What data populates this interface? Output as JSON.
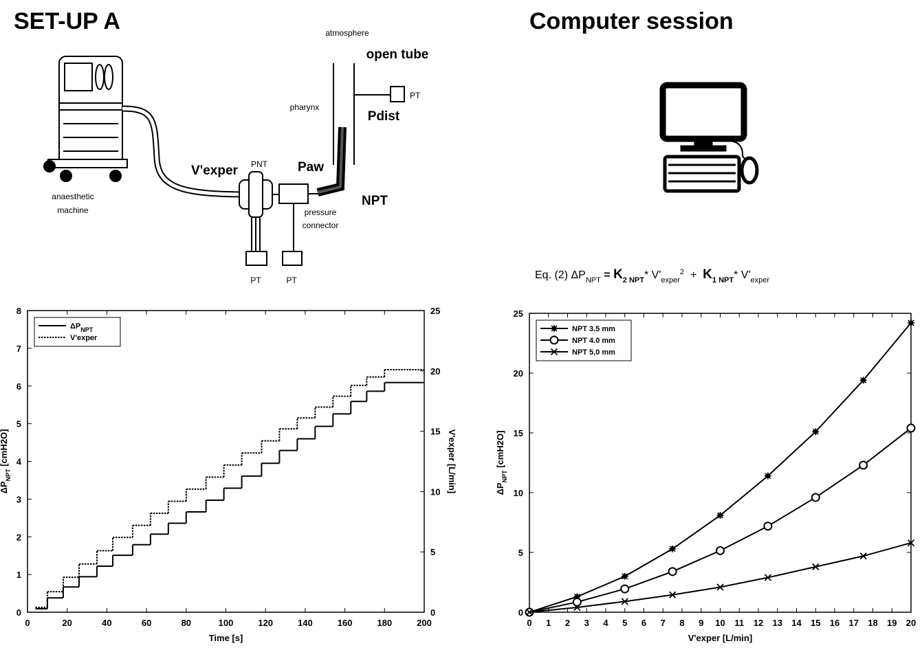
{
  "panels": {
    "setup_title": "SET-UP A",
    "computer_title": "Computer session"
  },
  "setup_labels": [
    "atmosphere",
    "open tube",
    "PT",
    "pharynx",
    "Pdist",
    "PNT",
    "V'exper",
    "Paw",
    "NPT",
    "anaesthetic",
    "machine",
    "pressure",
    "connector",
    "PT",
    "PT"
  ],
  "equation": [
    "Eq. (2) ΔP",
    "NPT",
    " = ",
    "K",
    "2 NPT",
    "* V'",
    "exper",
    "2",
    "  +  ",
    "K",
    "1 NPT",
    "* V'",
    "exper"
  ],
  "chart_data": [
    {
      "type": "step",
      "xlabel": "Time [s]",
      "ylabel": "ΔP",
      "ylabel_sub": "NPT",
      "ylabel_unit": " [cmH2O]",
      "y2label": "V'exper [L/min]",
      "x": [
        4,
        10,
        18,
        26,
        35,
        43,
        53,
        62,
        71,
        80,
        90,
        99,
        108,
        118,
        127,
        136,
        145,
        154,
        163,
        171,
        180
      ],
      "series": [
        {
          "name": "ΔP",
          "name_sub": "NPT",
          "color": "#000000",
          "style": "solid",
          "values": [
            0.09,
            0.38,
            0.67,
            0.94,
            1.22,
            1.51,
            1.79,
            2.07,
            2.36,
            2.66,
            2.97,
            3.29,
            3.61,
            3.95,
            4.29,
            4.6,
            4.93,
            5.26,
            5.59,
            5.86,
            6.09
          ]
        },
        {
          "name": "V'exper",
          "color": "#000000",
          "style": "dotted",
          "axis": "y2",
          "values": [
            0.4,
            1.7,
            2.9,
            4.0,
            5.1,
            6.2,
            7.2,
            8.2,
            9.2,
            10.2,
            11.2,
            12.2,
            13.2,
            14.2,
            15.2,
            16.1,
            17.0,
            17.9,
            18.8,
            19.5,
            20.1
          ]
        }
      ],
      "xlim": [
        0,
        200
      ],
      "xticks": [
        0,
        20,
        40,
        60,
        80,
        100,
        120,
        140,
        160,
        180,
        200
      ],
      "ylim": [
        0,
        8
      ],
      "yticks": [
        0,
        1,
        2,
        3,
        4,
        5,
        6,
        7,
        8
      ],
      "y2lim": [
        0,
        25
      ],
      "y2ticks": [
        0,
        5,
        10,
        15,
        20,
        25
      ],
      "legend": "upper-left"
    },
    {
      "type": "line",
      "xlabel": "V'exper [L/min]",
      "ylabel": "ΔP",
      "ylabel_sub": "NPT",
      "ylabel_unit": " [cmH2O]",
      "x": [
        0,
        2.5,
        5,
        7.5,
        10,
        12.5,
        15,
        17.5,
        20
      ],
      "series": [
        {
          "name": "NPT 3.5 mm",
          "color": "#000000",
          "marker": "star",
          "values": [
            0,
            1.3,
            3.0,
            5.3,
            8.1,
            11.4,
            15.1,
            19.4,
            24.2
          ]
        },
        {
          "name": "NPT 4.0 mm",
          "color": "#000000",
          "marker": "circle",
          "values": [
            0,
            0.85,
            1.95,
            3.4,
            5.15,
            7.2,
            9.6,
            12.3,
            15.4
          ]
        },
        {
          "name": "NPT 5,0 mm",
          "color": "#000000",
          "marker": "x",
          "values": [
            0,
            0.4,
            0.9,
            1.45,
            2.1,
            2.9,
            3.8,
            4.7,
            5.8
          ]
        }
      ],
      "xlim": [
        0,
        20
      ],
      "xticks": [
        0,
        1,
        2,
        3,
        4,
        5,
        6,
        7,
        8,
        9,
        10,
        11,
        12,
        13,
        14,
        15,
        16,
        17,
        18,
        19,
        20
      ],
      "ylim": [
        0,
        25
      ],
      "yticks": [
        0,
        5,
        10,
        15,
        20,
        25
      ],
      "legend": "upper-left"
    }
  ]
}
